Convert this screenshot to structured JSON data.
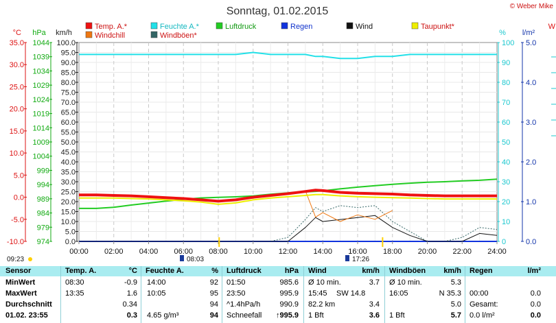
{
  "title": "Sonntag, 01.02.2015",
  "copyright": "© Weber Mike",
  "legend": [
    {
      "name": "Temp. A.*",
      "color": "#ee1111"
    },
    {
      "name": "Feuchte A.*",
      "color": "#22e0e8"
    },
    {
      "name": "Luftdruck",
      "color": "#22cc22"
    },
    {
      "name": "Regen",
      "color": "#1133dd"
    },
    {
      "name": "Wind",
      "color": "#111111"
    },
    {
      "name": "Taupunkt*",
      "color": "#eeee00"
    },
    {
      "name": "Windchill",
      "color": "#ee7711"
    },
    {
      "name": "Windböen*",
      "color": "#336666"
    }
  ],
  "axis_units": {
    "temp": "°C",
    "pressure": "hPa",
    "wind": "km/h",
    "humidity": "%",
    "rain": "l/m²",
    "edge": "W"
  },
  "markers": {
    "left_time": "09:23",
    "sunrise": "08:03",
    "sunset": "17:26"
  },
  "chart_data": {
    "type": "line",
    "x": [
      "00:00",
      "01:00",
      "02:00",
      "03:00",
      "04:00",
      "05:00",
      "06:00",
      "07:00",
      "08:00",
      "09:00",
      "10:00",
      "11:00",
      "12:00",
      "13:00",
      "13:35",
      "14:00",
      "15:00",
      "16:00",
      "17:00",
      "18:00",
      "19:00",
      "20:00",
      "21:00",
      "22:00",
      "23:00",
      "24:00"
    ],
    "x_ticks": [
      "00:00",
      "02:00",
      "04:00",
      "06:00",
      "08:00",
      "10:00",
      "12:00",
      "14:00",
      "16:00",
      "18:00",
      "20:00",
      "22:00",
      "24:00"
    ],
    "axes": {
      "temp": {
        "label": "°C",
        "range": [
          -10,
          35
        ],
        "ticks": [
          "35.0",
          "30.0",
          "25.0",
          "20.0",
          "15.0",
          "10.0",
          "5.0",
          "0.0",
          "-5.0",
          "-10.0"
        ]
      },
      "pressure": {
        "label": "hPa",
        "range": [
          974,
          1044
        ],
        "ticks": [
          "1044",
          "1039",
          "1034",
          "1029",
          "1024",
          "1019",
          "1014",
          "1009",
          "1004",
          "999",
          "994",
          "989",
          "984",
          "979",
          "974"
        ]
      },
      "wind": {
        "label": "km/h",
        "range": [
          0,
          100
        ],
        "ticks": [
          "100.0",
          "95.0",
          "90.0",
          "85.0",
          "80.0",
          "75.0",
          "70.0",
          "65.0",
          "60.0",
          "55.0",
          "50.0",
          "45.0",
          "40.0",
          "35.0",
          "30.0",
          "25.0",
          "20.0",
          "15.0",
          "10.0",
          "5.0",
          "0.0"
        ]
      },
      "humidity": {
        "label": "%",
        "range": [
          0,
          100
        ],
        "ticks": [
          "100",
          "90",
          "80",
          "70",
          "60",
          "50",
          "40",
          "30",
          "20",
          "10",
          "0"
        ]
      },
      "rain": {
        "label": "l/m²",
        "range": [
          0,
          5
        ],
        "ticks": [
          "5.0",
          "4.0",
          "3.0",
          "2.0",
          "1.0",
          "0.0"
        ]
      }
    },
    "series": [
      {
        "name": "Temp. A.*",
        "axis": "temp",
        "values": [
          0.5,
          0.5,
          0.4,
          0.3,
          0.1,
          -0.1,
          -0.3,
          -0.6,
          -0.9,
          -0.6,
          0.0,
          0.4,
          0.8,
          1.3,
          1.6,
          1.5,
          1.1,
          0.9,
          0.8,
          0.7,
          0.5,
          0.4,
          0.3,
          0.3,
          0.3,
          0.3
        ]
      },
      {
        "name": "Feuchte A.*",
        "axis": "humidity",
        "values": [
          94,
          94,
          94,
          94,
          94,
          94,
          94,
          94,
          94,
          94,
          95,
          94,
          94,
          94,
          93,
          93,
          92,
          92,
          93,
          93,
          94,
          94,
          94,
          94,
          94,
          94
        ]
      },
      {
        "name": "Luftdruck",
        "axis": "pressure",
        "values": [
          985.6,
          985.6,
          986.0,
          986.8,
          987.5,
          988.2,
          988.8,
          989.3,
          989.5,
          989.7,
          990.0,
          990.6,
          991.1,
          991.4,
          991.6,
          991.8,
          992.5,
          993.1,
          993.6,
          994.1,
          994.5,
          994.8,
          995.0,
          995.3,
          995.5,
          995.9
        ]
      },
      {
        "name": "Taupunkt*",
        "axis": "temp",
        "values": [
          -0.2,
          -0.2,
          -0.2,
          -0.3,
          -0.4,
          -0.6,
          -0.8,
          -1.1,
          -1.6,
          -1.3,
          -0.6,
          -0.2,
          0.1,
          0.4,
          0.6,
          0.6,
          0.3,
          0.1,
          0.0,
          -0.1,
          -0.2,
          -0.3,
          -0.4,
          -0.4,
          -0.4,
          -0.4
        ]
      },
      {
        "name": "Windchill",
        "axis": "temp",
        "values": [
          null,
          null,
          null,
          null,
          null,
          null,
          null,
          null,
          null,
          null,
          null,
          null,
          null,
          1.5,
          -4.5,
          -3.5,
          -5.5,
          -4.0,
          -5.0,
          -3.0,
          null,
          null,
          null,
          null,
          null,
          null
        ]
      },
      {
        "name": "Wind",
        "axis": "wind",
        "values": [
          0,
          0,
          0,
          0,
          0,
          0,
          0,
          0,
          0,
          0,
          0,
          0,
          0,
          7,
          12,
          10,
          11,
          12,
          13,
          7,
          3,
          0,
          0,
          0,
          4,
          3
        ]
      },
      {
        "name": "Windböen*",
        "axis": "wind",
        "values": [
          0,
          0,
          0,
          0,
          0,
          0,
          0,
          0,
          0,
          0,
          0,
          0,
          2,
          11,
          17,
          15,
          18,
          17,
          18,
          10,
          5,
          0,
          0,
          2,
          7,
          6
        ]
      },
      {
        "name": "Regen",
        "axis": "rain",
        "values": [
          0,
          0,
          0,
          0,
          0,
          0,
          0,
          0,
          0,
          0,
          0,
          0,
          0,
          0,
          0,
          0,
          0,
          0,
          0,
          0,
          0,
          0,
          0,
          0,
          0,
          0
        ]
      }
    ]
  },
  "table": {
    "headers": [
      "Sensor",
      "Temp. A.",
      "°C",
      "Feuchte A.",
      "%",
      "Luftdruck",
      "hPa",
      "Wind",
      "km/h",
      "Windböen",
      "km/h",
      "Regen",
      "l/m²"
    ],
    "rows": [
      {
        "label": "MinWert",
        "temp_time": "08:30",
        "temp_val": "-0.9",
        "hum_time": "14:00",
        "hum_val": "92",
        "press_time": "01:50",
        "press_val": "985.6",
        "wind_name": "Ø 10 min.",
        "wind_val": "3.7",
        "gust_name": "Ø 10 min.",
        "gust_val": "5.3",
        "rain_name": "",
        "rain_val": ""
      },
      {
        "label": "MaxWert",
        "temp_time": "13:35",
        "temp_val": "1.6",
        "hum_time": "10:05",
        "hum_val": "95",
        "press_time": "23:50",
        "press_val": "995.9",
        "wind_name": "15:45",
        "wind_dir": "SW 14.8",
        "wind_val": "",
        "gust_name": "16:05",
        "gust_val": "N 35.3",
        "rain_name": "00:00",
        "rain_val": "0.0"
      },
      {
        "label": "Durchschnitt",
        "temp_time": "",
        "temp_val": "0.34",
        "hum_time": "",
        "hum_val": "94",
        "press_time": "^1.4hPa/h",
        "press_val": "990.9",
        "wind_name": "82.2 km",
        "wind_val": "3.4",
        "gust_name": "",
        "gust_val": "5.0",
        "rain_name": "Gesamt:",
        "rain_val": "0.0"
      },
      {
        "label": "01.02. 23:55",
        "temp_time": "",
        "temp_val": "0.3",
        "hum_time": "4.65 g/m³",
        "hum_val": "94",
        "press_time": "Schneefall",
        "press_val": "↑995.9",
        "wind_name": "1 Bft",
        "wind_val": "3.6",
        "gust_name": "1 Bft",
        "gust_val": "5.7",
        "rain_name": "0.0 l/m²",
        "rain_val": "0.0"
      }
    ]
  }
}
